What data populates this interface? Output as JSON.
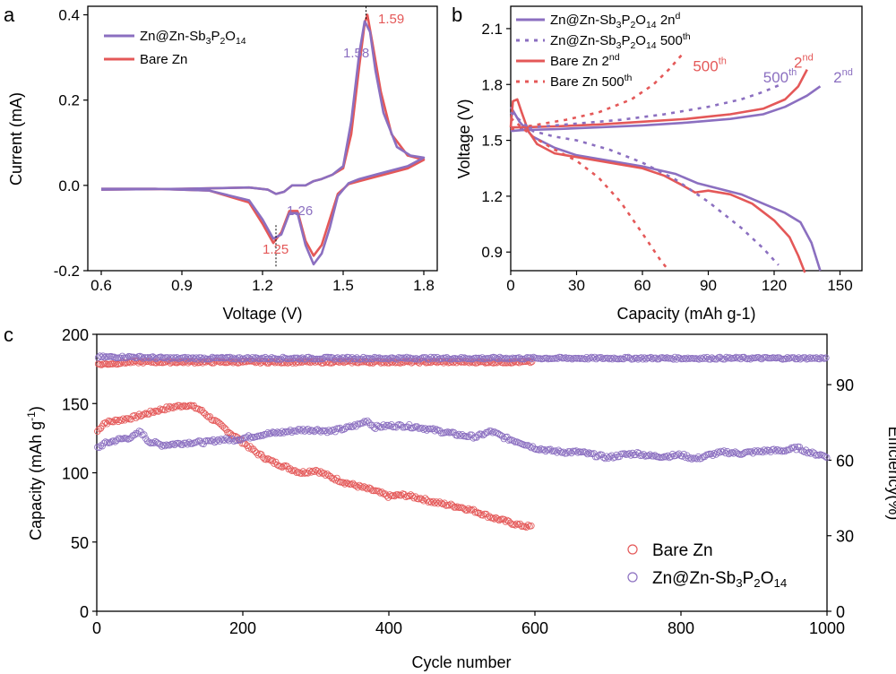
{
  "colors": {
    "purple": "#8b6fc0",
    "red": "#e45858",
    "axis": "#000000"
  },
  "chart_data": [
    {
      "panel": "a",
      "type": "line",
      "xlabel": "Voltage (V)",
      "ylabel": "Current (mA)",
      "xlim": [
        0.55,
        1.85
      ],
      "ylim": [
        -0.2,
        0.42
      ],
      "xticks": [
        0.6,
        0.9,
        1.2,
        1.5,
        1.8
      ],
      "xtick_labels": [
        "0.6",
        "0.9",
        "1.2",
        "1.5",
        "1.8"
      ],
      "yticks": [
        -0.2,
        0.0,
        0.2,
        0.4
      ],
      "ytick_labels": [
        "-0.2",
        "0.0",
        "0.2",
        "0.4"
      ],
      "legend": [
        {
          "key": "zn",
          "base": "Zn@Zn-Sb",
          "sub1": "3",
          "mid": "P",
          "sub2": "2",
          "mid2": "O",
          "sub3": "14"
        },
        {
          "key": "bare",
          "text": "Bare Zn"
        }
      ],
      "annotations": [
        {
          "text": "1.59",
          "x": 1.63,
          "y": 0.38,
          "series": "bare"
        },
        {
          "text": "1.58",
          "x": 1.5,
          "y": 0.3,
          "series": "zn"
        },
        {
          "text": "1.26",
          "x": 1.29,
          "y": -0.07,
          "series": "zn"
        },
        {
          "text": "1.25",
          "x": 1.2,
          "y": -0.16,
          "series": "bare"
        }
      ],
      "markers": [
        {
          "x": 1.585,
          "y_from": 0.39,
          "y_to": 0.42
        },
        {
          "x": 1.25,
          "y_from": -0.19,
          "y_to": -0.09
        }
      ],
      "series": [
        {
          "name": "Bare Zn",
          "key": "bare",
          "x": [
            0.6,
            0.9,
            1.15,
            1.22,
            1.25,
            1.28,
            1.31,
            1.36,
            1.39,
            1.42,
            1.46,
            1.5,
            1.53,
            1.56,
            1.58,
            1.59,
            1.61,
            1.64,
            1.68,
            1.74,
            1.8,
            1.74,
            1.68,
            1.62,
            1.56,
            1.52,
            1.48,
            1.45,
            1.42,
            1.39,
            1.36,
            1.33,
            1.3,
            1.27,
            1.24,
            1.2,
            1.15,
            1.0,
            0.8,
            0.6
          ],
          "y": [
            -0.01,
            -0.008,
            -0.005,
            -0.01,
            -0.02,
            -0.015,
            0.0,
            0.0,
            0.01,
            0.015,
            0.025,
            0.04,
            0.12,
            0.28,
            0.38,
            0.4,
            0.33,
            0.22,
            0.12,
            0.07,
            0.06,
            0.04,
            0.03,
            0.02,
            0.01,
            0.003,
            -0.02,
            -0.08,
            -0.14,
            -0.165,
            -0.13,
            -0.06,
            -0.06,
            -0.11,
            -0.135,
            -0.09,
            -0.04,
            -0.012,
            -0.008,
            -0.008
          ]
        },
        {
          "name": "Zn@Zn-Sb3P2O14",
          "key": "zn",
          "x": [
            0.6,
            0.9,
            1.15,
            1.22,
            1.25,
            1.28,
            1.31,
            1.36,
            1.39,
            1.42,
            1.46,
            1.5,
            1.53,
            1.56,
            1.58,
            1.6,
            1.62,
            1.65,
            1.7,
            1.75,
            1.8,
            1.74,
            1.68,
            1.62,
            1.56,
            1.52,
            1.48,
            1.45,
            1.42,
            1.39,
            1.36,
            1.33,
            1.3,
            1.27,
            1.24,
            1.2,
            1.15,
            1.0,
            0.8,
            0.6
          ],
          "y": [
            -0.01,
            -0.008,
            -0.005,
            -0.01,
            -0.02,
            -0.015,
            0.0,
            0.0,
            0.01,
            0.015,
            0.025,
            0.045,
            0.15,
            0.31,
            0.385,
            0.36,
            0.27,
            0.17,
            0.09,
            0.07,
            0.065,
            0.045,
            0.035,
            0.025,
            0.015,
            0.005,
            -0.025,
            -0.1,
            -0.16,
            -0.185,
            -0.14,
            -0.065,
            -0.065,
            -0.115,
            -0.125,
            -0.08,
            -0.035,
            -0.012,
            -0.008,
            -0.008
          ]
        }
      ]
    },
    {
      "panel": "b",
      "type": "line",
      "xlabel": "Capacity (mAh g-1)",
      "ylabel": "Voltage (V)",
      "xlim": [
        0,
        160
      ],
      "ylim": [
        0.8,
        2.22
      ],
      "xticks": [
        0,
        30,
        60,
        90,
        120,
        150
      ],
      "xtick_labels": [
        "0",
        "30",
        "60",
        "90",
        "120",
        "150"
      ],
      "yticks": [
        0.9,
        1.2,
        1.5,
        1.8,
        2.1
      ],
      "ytick_labels": [
        "0.9",
        "1.2",
        "1.5",
        "1.8",
        "2.1"
      ],
      "legend": [
        {
          "key": "zn2",
          "text_base": "Zn@Zn-Sb",
          "s1": "3",
          "m1": "P",
          "s2": "2",
          "m2": "O",
          "s3": "14",
          "tail": " 2n",
          "sup": "d",
          "style": "solid",
          "series": "zn"
        },
        {
          "key": "zn500",
          "text_base": "Zn@Zn-Sb",
          "s1": "3",
          "m1": "P",
          "s2": "2",
          "m2": "O",
          "s3": "14",
          "tail": " 500",
          "sup": "th",
          "style": "dashed",
          "series": "zn"
        },
        {
          "key": "bare2",
          "text": "Bare Zn 2",
          "sup": "nd",
          "style": "solid",
          "series": "bare"
        },
        {
          "key": "bare500",
          "text": "Bare Zn 500",
          "sup": "th",
          "style": "dashed",
          "series": "bare"
        }
      ],
      "curve_labels": [
        {
          "text": "500",
          "sup": "th",
          "x": 83,
          "y": 1.87,
          "series": "bare"
        },
        {
          "text": "2",
          "sup": "nd",
          "x": 129,
          "y": 1.89,
          "series": "bare"
        },
        {
          "text": "500",
          "sup": "th",
          "x": 115,
          "y": 1.81,
          "series": "zn"
        },
        {
          "text": "2",
          "sup": "nd",
          "x": 147,
          "y": 1.81,
          "series": "zn"
        }
      ],
      "series": [
        {
          "name": "Zn 2nd charge",
          "key": "zn",
          "style": "solid",
          "x": [
            0,
            5,
            20,
            40,
            60,
            80,
            100,
            115,
            125,
            135,
            141
          ],
          "y": [
            1.55,
            1.555,
            1.56,
            1.57,
            1.58,
            1.595,
            1.615,
            1.64,
            1.68,
            1.74,
            1.79
          ]
        },
        {
          "name": "Zn 2nd discharge",
          "key": "zn",
          "style": "solid",
          "x": [
            0,
            4,
            10,
            20,
            30,
            45,
            60,
            75,
            85,
            95,
            105,
            115,
            125,
            132,
            137,
            141
          ],
          "y": [
            1.68,
            1.6,
            1.52,
            1.46,
            1.42,
            1.39,
            1.36,
            1.32,
            1.27,
            1.24,
            1.21,
            1.16,
            1.11,
            1.06,
            0.95,
            0.8
          ]
        },
        {
          "name": "Bare Zn 2nd charge",
          "key": "bare",
          "style": "solid",
          "x": [
            0,
            5,
            20,
            40,
            60,
            80,
            100,
            115,
            125,
            131,
            135
          ],
          "y": [
            1.57,
            1.57,
            1.575,
            1.585,
            1.6,
            1.615,
            1.64,
            1.67,
            1.72,
            1.79,
            1.88
          ]
        },
        {
          "name": "Bare Zn 2nd discharge",
          "key": "bare",
          "style": "solid",
          "x": [
            0,
            1,
            3,
            5,
            8,
            12,
            20,
            30,
            45,
            60,
            70,
            78,
            84,
            90,
            100,
            110,
            120,
            127,
            131,
            134
          ],
          "y": [
            1.57,
            1.71,
            1.72,
            1.65,
            1.55,
            1.48,
            1.43,
            1.41,
            1.38,
            1.35,
            1.31,
            1.26,
            1.22,
            1.23,
            1.21,
            1.16,
            1.07,
            0.98,
            0.88,
            0.79
          ]
        },
        {
          "name": "Zn 500th charge",
          "key": "zn",
          "style": "dashed",
          "x": [
            0,
            10,
            30,
            50,
            70,
            90,
            105,
            115,
            123
          ],
          "y": [
            1.56,
            1.57,
            1.59,
            1.61,
            1.64,
            1.68,
            1.72,
            1.76,
            1.8
          ]
        },
        {
          "name": "Zn 500th discharge",
          "key": "zn",
          "style": "dashed",
          "x": [
            0,
            10,
            20,
            30,
            45,
            60,
            75,
            90,
            105,
            115,
            122
          ],
          "y": [
            1.65,
            1.55,
            1.52,
            1.5,
            1.45,
            1.38,
            1.29,
            1.17,
            1.03,
            0.92,
            0.83
          ]
        },
        {
          "name": "Bare Zn 500th charge",
          "key": "bare",
          "style": "dashed",
          "x": [
            0,
            10,
            25,
            40,
            55,
            65,
            72,
            78
          ],
          "y": [
            1.56,
            1.58,
            1.61,
            1.65,
            1.72,
            1.8,
            1.88,
            1.96
          ]
        },
        {
          "name": "Bare Zn 500th discharge",
          "key": "bare",
          "style": "dashed",
          "x": [
            0,
            10,
            20,
            30,
            40,
            50,
            60,
            68,
            72
          ],
          "y": [
            1.62,
            1.52,
            1.45,
            1.39,
            1.3,
            1.17,
            1.0,
            0.86,
            0.8
          ]
        }
      ]
    },
    {
      "panel": "c",
      "type": "scatter",
      "xlabel": "Cycle number",
      "ylabel": "Capacity (mAh g",
      "ylabel_sup": "-1",
      "ylabel_tail": ")",
      "y2label": "Efficiency(%)",
      "xlim": [
        0,
        1000
      ],
      "ylim": [
        0,
        200
      ],
      "y2lim": [
        0,
        110
      ],
      "xticks": [
        0,
        200,
        400,
        600,
        800,
        1000
      ],
      "xtick_labels": [
        "0",
        "200",
        "400",
        "600",
        "800",
        "1000"
      ],
      "yticks": [
        0,
        50,
        100,
        150,
        200
      ],
      "ytick_labels": [
        "0",
        "50",
        "100",
        "150",
        "200"
      ],
      "y2ticks": [
        0,
        30,
        60,
        90
      ],
      "y2tick_labels": [
        "0",
        "30",
        "60",
        "90"
      ],
      "legend": [
        {
          "key": "bare",
          "text": "Bare Zn"
        },
        {
          "key": "zn",
          "base": "Zn@Zn-Sb",
          "sub1": "3",
          "mid": "P",
          "sub2": "2",
          "mid2": "O",
          "sub3": "14"
        }
      ],
      "series": [
        {
          "name": "Bare Zn capacity",
          "key": "bare",
          "axis": "left",
          "x": [
            1,
            10,
            30,
            50,
            70,
            90,
            110,
            125,
            140,
            160,
            180,
            200,
            220,
            240,
            260,
            280,
            300,
            320,
            340,
            360,
            380,
            400,
            420,
            440,
            460,
            480,
            500,
            520,
            540,
            560,
            580,
            595
          ],
          "y": [
            130,
            136,
            138,
            140,
            143,
            146,
            148,
            149,
            146,
            138,
            130,
            122,
            114,
            108,
            104,
            100,
            102,
            97,
            93,
            90,
            87,
            83,
            84,
            82,
            79,
            77,
            75,
            72,
            68,
            65,
            62,
            61
          ]
        },
        {
          "name": "Zn@Zn-Sb3P2O14 capacity",
          "key": "zn",
          "axis": "left",
          "x": [
            1,
            10,
            30,
            50,
            60,
            70,
            90,
            110,
            130,
            150,
            170,
            190,
            210,
            230,
            250,
            280,
            300,
            320,
            340,
            360,
            370,
            380,
            400,
            420,
            440,
            460,
            480,
            500,
            520,
            540,
            560,
            580,
            600,
            620,
            640,
            660,
            680,
            700,
            720,
            740,
            760,
            780,
            800,
            820,
            840,
            860,
            880,
            900,
            920,
            940,
            960,
            980,
            1000
          ],
          "y": [
            118,
            121,
            124,
            126,
            130,
            123,
            120,
            121,
            122,
            122,
            124,
            124,
            126,
            128,
            129,
            131,
            131,
            130,
            132,
            135,
            138,
            133,
            134,
            134,
            133,
            131,
            129,
            127,
            126,
            130,
            125,
            122,
            118,
            116,
            115,
            115,
            113,
            111,
            113,
            114,
            112,
            112,
            113,
            110,
            113,
            115,
            114,
            115,
            116,
            116,
            118,
            114,
            112
          ]
        },
        {
          "name": "Bare Zn efficiency",
          "key": "bare",
          "axis": "right",
          "x": [
            2,
            50,
            100,
            150,
            200,
            250,
            300,
            350,
            400,
            450,
            500,
            550,
            598
          ],
          "y": [
            98,
            99,
            99,
            99,
            99,
            99,
            99,
            99,
            99,
            99,
            99,
            99,
            99
          ]
        },
        {
          "name": "Zn@Zn-Sb3P2O14 efficiency",
          "key": "zn",
          "axis": "right",
          "x": [
            2,
            50,
            100,
            200,
            300,
            400,
            500,
            600,
            700,
            800,
            900,
            1000
          ],
          "y": [
            101,
            101,
            100.5,
            100.5,
            100.5,
            100.5,
            100.5,
            100.5,
            100.5,
            100.5,
            100.5,
            100.5
          ]
        }
      ]
    }
  ]
}
